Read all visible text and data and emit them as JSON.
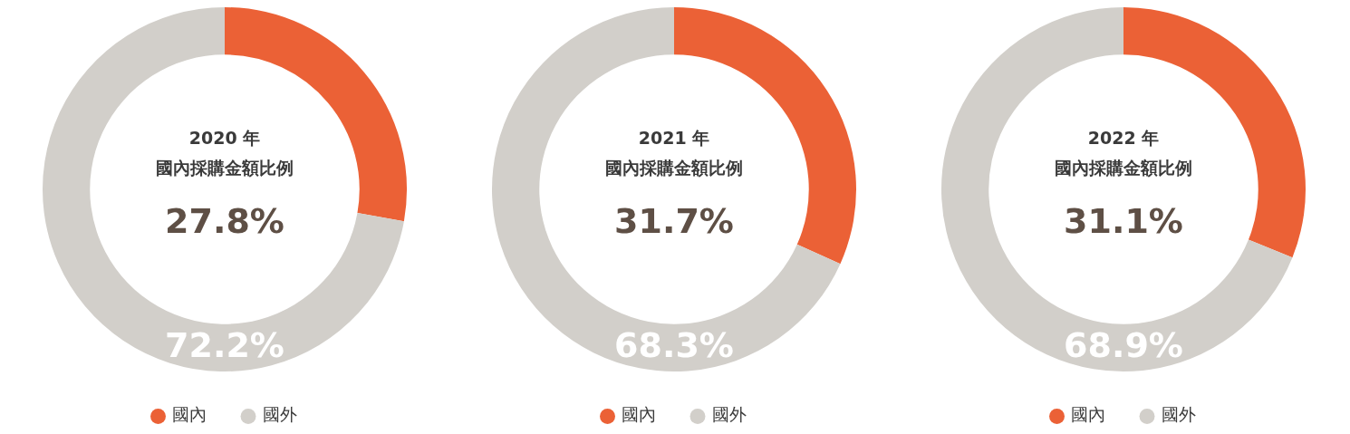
{
  "chart_data": [
    {
      "type": "donut",
      "title": "2020 年",
      "subtitle": "國內採購金額比例",
      "annotations": [
        "27.8%"
      ],
      "categories": [
        "國內",
        "國外"
      ],
      "values": [
        27.8,
        72.2
      ],
      "colors": [
        "#eb6136",
        "#d2cfca"
      ],
      "value_labels": [
        null,
        "72.2%"
      ],
      "legend": "bottom"
    },
    {
      "type": "donut",
      "title": "2021 年",
      "subtitle": "國內採購金額比例",
      "annotations": [
        "31.7%"
      ],
      "categories": [
        "國內",
        "國外"
      ],
      "values": [
        31.7,
        68.3
      ],
      "colors": [
        "#eb6136",
        "#d2cfca"
      ],
      "value_labels": [
        null,
        "68.3%"
      ],
      "legend": "bottom"
    },
    {
      "type": "donut",
      "title": "2022 年",
      "subtitle": "國內採購金額比例",
      "annotations": [
        "31.1%"
      ],
      "categories": [
        "國內",
        "國外"
      ],
      "values": [
        31.1,
        68.9
      ],
      "colors": [
        "#eb6136",
        "#d2cfca"
      ],
      "value_labels": [
        null,
        "68.9%"
      ],
      "legend": "bottom"
    }
  ]
}
